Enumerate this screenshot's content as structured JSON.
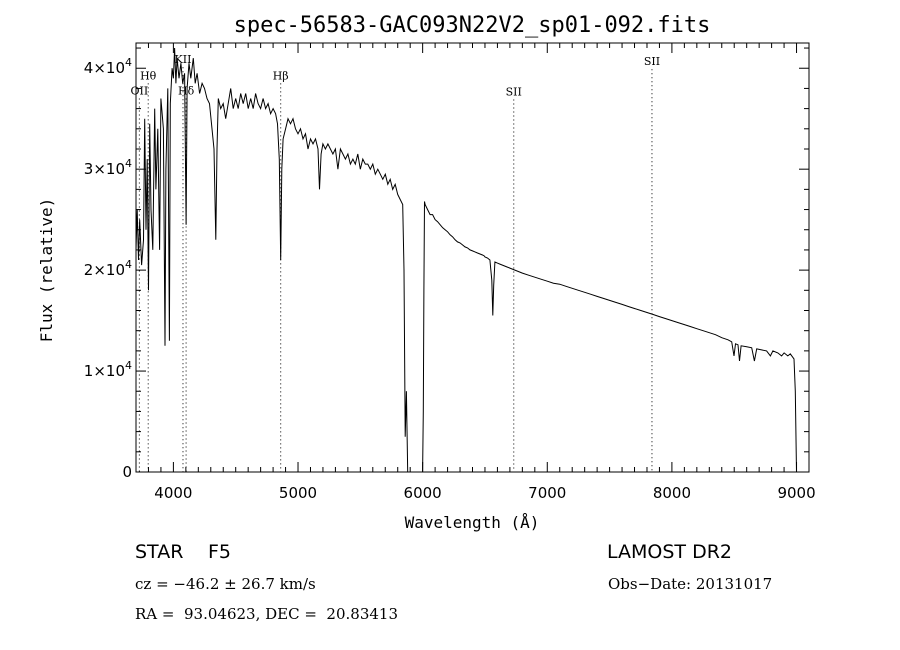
{
  "chart_data": {
    "type": "line",
    "title": "spec-56583-GAC093N22V2_sp01-092.fits",
    "xlabel": "Wavelength (Å)",
    "ylabel": "Flux (relative)",
    "xlim": [
      3700,
      9100
    ],
    "ylim": [
      0,
      42500
    ],
    "x_ticks": [
      {
        "value": 4000,
        "label": "4000"
      },
      {
        "value": 5000,
        "label": "5000"
      },
      {
        "value": 6000,
        "label": "6000"
      },
      {
        "value": 7000,
        "label": "7000"
      },
      {
        "value": 8000,
        "label": "8000"
      },
      {
        "value": 9000,
        "label": "9000"
      }
    ],
    "y_ticks": [
      {
        "value": 0,
        "mantissa": "0",
        "exponent": ""
      },
      {
        "value": 10000,
        "mantissa": "1×10",
        "exponent": "4"
      },
      {
        "value": 20000,
        "mantissa": "2×10",
        "exponent": "4"
      },
      {
        "value": 30000,
        "mantissa": "3×10",
        "exponent": "4"
      },
      {
        "value": 40000,
        "mantissa": "4×10",
        "exponent": "4"
      }
    ],
    "lines": [
      {
        "label": "OII",
        "wavelength": 3727,
        "label_flux": 37400
      },
      {
        "label": "Hθ",
        "wavelength": 3798,
        "label_flux": 38900
      },
      {
        "label": "KII",
        "wavelength": 4077,
        "label_flux": 40500
      },
      {
        "label": "Hδ",
        "wavelength": 4102,
        "label_flux": 37400
      },
      {
        "label": "Hβ",
        "wavelength": 4861,
        "label_flux": 38900
      },
      {
        "label": "SII",
        "wavelength": 6731,
        "label_flux": 37300
      },
      {
        "label": "SII",
        "wavelength": 7840,
        "label_flux": 40300
      }
    ],
    "series": [
      {
        "color": "#000000",
        "points": [
          [
            3700,
            22000
          ],
          [
            3710,
            26000
          ],
          [
            3720,
            21000
          ],
          [
            3730,
            25000
          ],
          [
            3745,
            20500
          ],
          [
            3760,
            23000
          ],
          [
            3770,
            35000
          ],
          [
            3780,
            24000
          ],
          [
            3790,
            31000
          ],
          [
            3800,
            18000
          ],
          [
            3810,
            34500
          ],
          [
            3820,
            26000
          ],
          [
            3835,
            22000
          ],
          [
            3850,
            36000
          ],
          [
            3860,
            28000
          ],
          [
            3875,
            34000
          ],
          [
            3889,
            22000
          ],
          [
            3900,
            37000
          ],
          [
            3920,
            34000
          ],
          [
            3933,
            12500
          ],
          [
            3940,
            30000
          ],
          [
            3955,
            38000
          ],
          [
            3968,
            13000
          ],
          [
            3975,
            36500
          ],
          [
            3990,
            40000
          ],
          [
            4000,
            39000
          ],
          [
            4010,
            42000
          ],
          [
            4020,
            38500
          ],
          [
            4030,
            41000
          ],
          [
            4045,
            39000
          ],
          [
            4060,
            40500
          ],
          [
            4075,
            38500
          ],
          [
            4090,
            39500
          ],
          [
            4102,
            24500
          ],
          [
            4110,
            38000
          ],
          [
            4125,
            40500
          ],
          [
            4140,
            39000
          ],
          [
            4160,
            41000
          ],
          [
            4175,
            38500
          ],
          [
            4190,
            39500
          ],
          [
            4210,
            37500
          ],
          [
            4230,
            38500
          ],
          [
            4250,
            38000
          ],
          [
            4270,
            37000
          ],
          [
            4290,
            36500
          ],
          [
            4310,
            34000
          ],
          [
            4326,
            32000
          ],
          [
            4340,
            23000
          ],
          [
            4350,
            32000
          ],
          [
            4360,
            37000
          ],
          [
            4380,
            36000
          ],
          [
            4400,
            36500
          ],
          [
            4420,
            35000
          ],
          [
            4440,
            36500
          ],
          [
            4460,
            38000
          ],
          [
            4480,
            36000
          ],
          [
            4500,
            37000
          ],
          [
            4520,
            36000
          ],
          [
            4540,
            37500
          ],
          [
            4560,
            36500
          ],
          [
            4580,
            37500
          ],
          [
            4600,
            36000
          ],
          [
            4620,
            37000
          ],
          [
            4640,
            36000
          ],
          [
            4660,
            37500
          ],
          [
            4680,
            36500
          ],
          [
            4700,
            36000
          ],
          [
            4720,
            37000
          ],
          [
            4740,
            36000
          ],
          [
            4760,
            36500
          ],
          [
            4780,
            35500
          ],
          [
            4800,
            36000
          ],
          [
            4820,
            35500
          ],
          [
            4835,
            34500
          ],
          [
            4850,
            31000
          ],
          [
            4861,
            21000
          ],
          [
            4870,
            30000
          ],
          [
            4880,
            33000
          ],
          [
            4900,
            34000
          ],
          [
            4920,
            35000
          ],
          [
            4940,
            34500
          ],
          [
            4960,
            35000
          ],
          [
            4980,
            34000
          ],
          [
            5000,
            33500
          ],
          [
            5020,
            34000
          ],
          [
            5040,
            33000
          ],
          [
            5060,
            33500
          ],
          [
            5080,
            32000
          ],
          [
            5100,
            33000
          ],
          [
            5120,
            32500
          ],
          [
            5140,
            33000
          ],
          [
            5160,
            32000
          ],
          [
            5172,
            28000
          ],
          [
            5185,
            31500
          ],
          [
            5200,
            32500
          ],
          [
            5220,
            32000
          ],
          [
            5240,
            32500
          ],
          [
            5260,
            32000
          ],
          [
            5280,
            31500
          ],
          [
            5300,
            32000
          ],
          [
            5320,
            30000
          ],
          [
            5340,
            32000
          ],
          [
            5360,
            31500
          ],
          [
            5380,
            31000
          ],
          [
            5400,
            31500
          ],
          [
            5420,
            30500
          ],
          [
            5440,
            31000
          ],
          [
            5460,
            30500
          ],
          [
            5480,
            31500
          ],
          [
            5500,
            30000
          ],
          [
            5520,
            31000
          ],
          [
            5540,
            30500
          ],
          [
            5560,
            30500
          ],
          [
            5580,
            30000
          ],
          [
            5600,
            30500
          ],
          [
            5620,
            29500
          ],
          [
            5640,
            30000
          ],
          [
            5660,
            29500
          ],
          [
            5680,
            29000
          ],
          [
            5700,
            29500
          ],
          [
            5720,
            28500
          ],
          [
            5740,
            29000
          ],
          [
            5760,
            28000
          ],
          [
            5780,
            28500
          ],
          [
            5800,
            27500
          ],
          [
            5820,
            27000
          ],
          [
            5840,
            26500
          ],
          [
            5850,
            20000
          ],
          [
            5860,
            3500
          ],
          [
            5870,
            8000
          ],
          [
            5880,
            0
          ],
          [
            5900,
            0
          ],
          [
            5950,
            0
          ],
          [
            5990,
            0
          ],
          [
            6000,
            0
          ],
          [
            6005,
            6000
          ],
          [
            6010,
            18000
          ],
          [
            6015,
            26800
          ],
          [
            6020,
            26500
          ],
          [
            6040,
            26000
          ],
          [
            6060,
            25500
          ],
          [
            6080,
            25500
          ],
          [
            6100,
            25000
          ],
          [
            6120,
            24800
          ],
          [
            6140,
            24500
          ],
          [
            6160,
            24200
          ],
          [
            6180,
            24000
          ],
          [
            6200,
            23800
          ],
          [
            6220,
            23500
          ],
          [
            6240,
            23300
          ],
          [
            6260,
            23000
          ],
          [
            6280,
            22800
          ],
          [
            6300,
            22700
          ],
          [
            6320,
            22500
          ],
          [
            6340,
            22300
          ],
          [
            6360,
            22200
          ],
          [
            6380,
            22000
          ],
          [
            6400,
            21900
          ],
          [
            6420,
            21800
          ],
          [
            6440,
            21700
          ],
          [
            6460,
            21600
          ],
          [
            6480,
            21500
          ],
          [
            6495,
            21400
          ],
          [
            6500,
            21300
          ],
          [
            6520,
            21200
          ],
          [
            6540,
            21000
          ],
          [
            6555,
            19000
          ],
          [
            6563,
            15500
          ],
          [
            6570,
            18500
          ],
          [
            6580,
            20800
          ],
          [
            6600,
            20700
          ],
          [
            6620,
            20600
          ],
          [
            6640,
            20500
          ],
          [
            6660,
            20400
          ],
          [
            6680,
            20300
          ],
          [
            6700,
            20200
          ],
          [
            6720,
            20100
          ],
          [
            6740,
            20000
          ],
          [
            6760,
            19900
          ],
          [
            6780,
            19800
          ],
          [
            6800,
            19700
          ],
          [
            6850,
            19500
          ],
          [
            6900,
            19300
          ],
          [
            6950,
            19100
          ],
          [
            7000,
            18900
          ],
          [
            7050,
            18700
          ],
          [
            7100,
            18600
          ],
          [
            7150,
            18400
          ],
          [
            7200,
            18200
          ],
          [
            7250,
            18000
          ],
          [
            7300,
            17800
          ],
          [
            7350,
            17600
          ],
          [
            7400,
            17400
          ],
          [
            7450,
            17200
          ],
          [
            7500,
            17000
          ],
          [
            7550,
            16800
          ],
          [
            7600,
            16600
          ],
          [
            7650,
            16400
          ],
          [
            7700,
            16200
          ],
          [
            7750,
            16000
          ],
          [
            7800,
            15800
          ],
          [
            7850,
            15600
          ],
          [
            7900,
            15400
          ],
          [
            7950,
            15200
          ],
          [
            8000,
            15000
          ],
          [
            8050,
            14800
          ],
          [
            8100,
            14600
          ],
          [
            8150,
            14400
          ],
          [
            8200,
            14200
          ],
          [
            8250,
            14000
          ],
          [
            8300,
            13800
          ],
          [
            8350,
            13600
          ],
          [
            8400,
            13300
          ],
          [
            8450,
            13100
          ],
          [
            8480,
            12900
          ],
          [
            8498,
            11500
          ],
          [
            8510,
            12700
          ],
          [
            8530,
            12600
          ],
          [
            8542,
            11000
          ],
          [
            8555,
            12500
          ],
          [
            8600,
            12400
          ],
          [
            8640,
            12300
          ],
          [
            8662,
            11000
          ],
          [
            8680,
            12200
          ],
          [
            8720,
            12100
          ],
          [
            8760,
            12000
          ],
          [
            8790,
            11500
          ],
          [
            8810,
            12000
          ],
          [
            8850,
            11800
          ],
          [
            8880,
            11500
          ],
          [
            8900,
            11800
          ],
          [
            8930,
            11500
          ],
          [
            8950,
            11700
          ],
          [
            8980,
            11200
          ],
          [
            8990,
            8000
          ],
          [
            9000,
            0
          ]
        ]
      }
    ]
  },
  "footer": {
    "object_class": "STAR",
    "subclass": "F5",
    "survey": "LAMOST DR2",
    "velocity": "cz = −46.2 ± 26.7 km/s",
    "obs_date": "Obs−Date: 20131017",
    "coordinates": "RA =  93.04623, DEC =  20.83413"
  }
}
